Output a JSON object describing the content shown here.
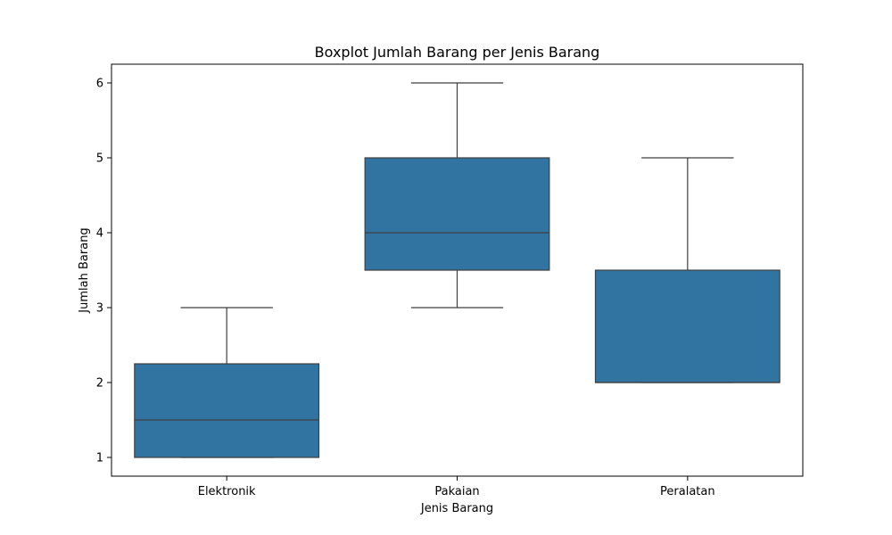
{
  "chart_data": {
    "type": "boxplot",
    "title": "Boxplot Jumlah Barang per Jenis Barang",
    "xlabel": "Jenis Barang",
    "ylabel": "Jumlah Barang",
    "categories": [
      "Elektronik",
      "Pakaian",
      "Peralatan"
    ],
    "boxes": [
      {
        "category": "Elektronik",
        "whisker_low": 1,
        "q1": 1,
        "median": 1.5,
        "q3": 2.25,
        "whisker_high": 3
      },
      {
        "category": "Pakaian",
        "whisker_low": 3,
        "q1": 3.5,
        "median": 4,
        "q3": 5,
        "whisker_high": 6
      },
      {
        "category": "Peralatan",
        "whisker_low": 2,
        "q1": 2,
        "median": 2,
        "q3": 3.5,
        "whisker_high": 5
      }
    ],
    "y_ticks": [
      1,
      2,
      3,
      4,
      5,
      6
    ],
    "ylim": [
      0.75,
      6.25
    ],
    "grid": false,
    "box_color": "#3274a1",
    "line_color": "#3f3f3f"
  }
}
